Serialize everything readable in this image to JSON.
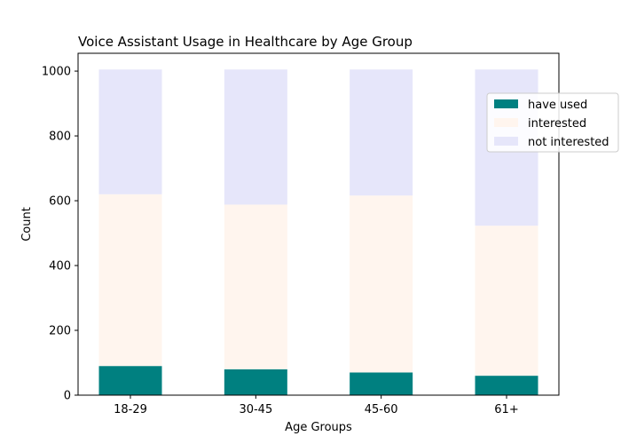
{
  "chart_data": {
    "type": "bar",
    "stacked": true,
    "title": "Voice Assistant Usage in Healthcare by Age Group",
    "xlabel": "Age Groups",
    "ylabel": "Count",
    "categories": [
      "18-29",
      "30-45",
      "45-60",
      "61+"
    ],
    "series": [
      {
        "name": "have used",
        "values": [
          90,
          80,
          70,
          60
        ],
        "color": "#008080"
      },
      {
        "name": "interested",
        "values": [
          530,
          508,
          546,
          463
        ],
        "color": "#fff5ee"
      },
      {
        "name": "not interested",
        "values": [
          385,
          417,
          389,
          482
        ],
        "color": "#e6e6fa"
      }
    ],
    "ylim": [
      0,
      1055
    ],
    "yticks": [
      0,
      200,
      400,
      600,
      800,
      1000
    ],
    "grid": false,
    "legend_position": "upper-right, extending outside axes"
  }
}
